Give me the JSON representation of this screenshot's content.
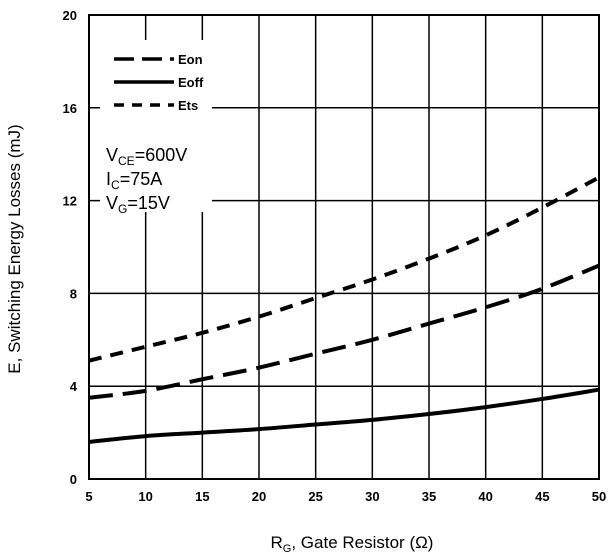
{
  "chart_data": {
    "type": "line",
    "xlabel": {
      "main": "R",
      "sub": "G",
      "rest": ", Gate Resistor (Ω)"
    },
    "ylabel": "E, Switching Energy Losses (mJ)",
    "xlim": [
      5,
      50
    ],
    "ylim": [
      0,
      20
    ],
    "xticks": [
      5,
      10,
      15,
      20,
      25,
      30,
      35,
      40,
      45,
      50
    ],
    "yticks": [
      0,
      4,
      8,
      12,
      16,
      20
    ],
    "grid": true,
    "legend_position": "top-left",
    "x": [
      5,
      10,
      15,
      20,
      25,
      30,
      35,
      40,
      45,
      50
    ],
    "series": [
      {
        "name": "Eon",
        "style": "long-dash",
        "values": [
          3.5,
          3.8,
          4.3,
          4.8,
          5.4,
          6.0,
          6.7,
          7.4,
          8.2,
          9.2
        ]
      },
      {
        "name": "Eoff",
        "style": "solid",
        "values": [
          1.6,
          1.85,
          2.0,
          2.15,
          2.35,
          2.55,
          2.8,
          3.1,
          3.45,
          3.85
        ]
      },
      {
        "name": "Ets",
        "style": "short-dash",
        "values": [
          5.1,
          5.7,
          6.3,
          7.0,
          7.8,
          8.6,
          9.5,
          10.5,
          11.7,
          13.0
        ]
      }
    ],
    "conditions": [
      {
        "main": "V",
        "sub": "CE",
        "rest": "=600V"
      },
      {
        "main": "I",
        "sub": "C",
        "rest": "=75A"
      },
      {
        "main": "V",
        "sub": "G",
        "rest": "=15V"
      }
    ],
    "line_color": "#000000"
  }
}
